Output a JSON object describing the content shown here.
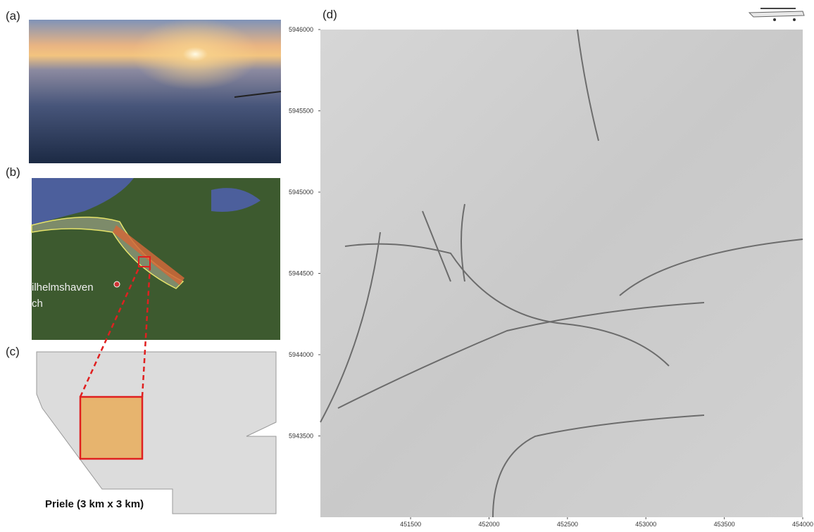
{
  "panels": {
    "a": "(a)",
    "b": "(b)",
    "c": "(c)",
    "d": "(d)"
  },
  "map_b": {
    "place_1": "ilhelmshaven",
    "place_2": "ch"
  },
  "caption_c": "Priele (3 km x 3 km)",
  "map_d": {
    "xlim": [
      450925,
      454000
    ],
    "ylim": [
      5943000,
      5946000
    ],
    "xticks": [
      451500,
      452000,
      452500,
      453000,
      453500,
      454000
    ],
    "yticks": [
      5943500,
      5944000,
      5944500,
      5945000,
      5945500,
      5946000
    ]
  }
}
